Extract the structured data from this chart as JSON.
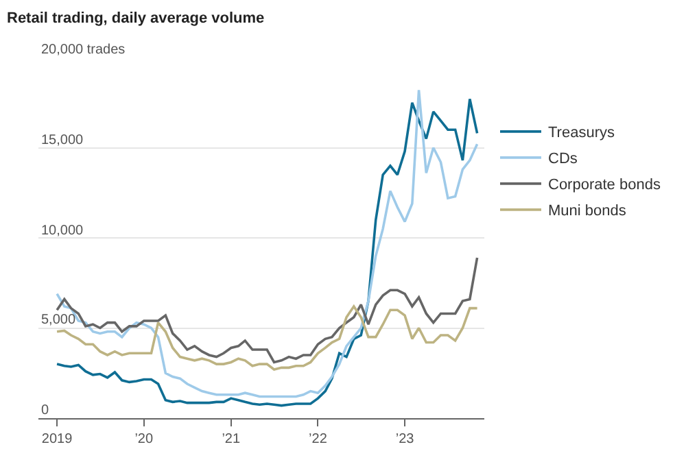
{
  "chart_data": {
    "type": "line",
    "title": "Retail trading, daily average volume",
    "x": [
      "2019-01",
      "2019-02",
      "2019-03",
      "2019-04",
      "2019-05",
      "2019-06",
      "2019-07",
      "2019-08",
      "2019-09",
      "2019-10",
      "2019-11",
      "2019-12",
      "2020-01",
      "2020-02",
      "2020-03",
      "2020-04",
      "2020-05",
      "2020-06",
      "2020-07",
      "2020-08",
      "2020-09",
      "2020-10",
      "2020-11",
      "2020-12",
      "2021-01",
      "2021-02",
      "2021-03",
      "2021-04",
      "2021-05",
      "2021-06",
      "2021-07",
      "2021-08",
      "2021-09",
      "2021-10",
      "2021-11",
      "2021-12",
      "2022-01",
      "2022-02",
      "2022-03",
      "2022-04",
      "2022-05",
      "2022-06",
      "2022-07",
      "2022-08",
      "2022-09",
      "2022-10",
      "2022-11",
      "2022-12",
      "2023-01",
      "2023-02",
      "2023-03",
      "2023-04",
      "2023-05",
      "2023-06",
      "2023-07",
      "2023-08",
      "2023-09",
      "2023-10",
      "2023-11"
    ],
    "series": [
      {
        "name": "Treasurys",
        "color": "#0f6e94",
        "values": [
          3000,
          2900,
          2850,
          2950,
          2600,
          2400,
          2450,
          2250,
          2550,
          2100,
          2000,
          2050,
          2150,
          2150,
          1900,
          1000,
          900,
          950,
          850,
          850,
          850,
          850,
          900,
          900,
          1100,
          1000,
          900,
          800,
          750,
          800,
          750,
          700,
          750,
          800,
          800,
          800,
          1100,
          1500,
          2200,
          3600,
          3400,
          4400,
          4600,
          6500,
          11000,
          13500,
          14000,
          13500,
          14800,
          17500,
          16500,
          15500,
          17000,
          16500,
          16000,
          16000,
          14300,
          17700,
          15800
        ]
      },
      {
        "name": "CDs",
        "color": "#9ecae9",
        "values": [
          6900,
          6200,
          6100,
          5400,
          5300,
          4800,
          4700,
          4800,
          4800,
          4500,
          5000,
          5300,
          5200,
          5000,
          4500,
          2500,
          2300,
          2200,
          1900,
          1700,
          1500,
          1400,
          1300,
          1300,
          1300,
          1300,
          1400,
          1300,
          1200,
          1200,
          1200,
          1200,
          1200,
          1200,
          1300,
          1500,
          1400,
          1800,
          2300,
          3000,
          4000,
          4500,
          5000,
          6500,
          9000,
          10500,
          12600,
          11700,
          10900,
          11900,
          18200,
          13600,
          15000,
          14200,
          12200,
          12300,
          13800,
          14300,
          15200
        ]
      },
      {
        "name": "Corporate bonds",
        "color": "#666666",
        "values": [
          6000,
          6600,
          6100,
          5800,
          5100,
          5200,
          5000,
          5300,
          5300,
          4800,
          5100,
          5100,
          5400,
          5400,
          5400,
          5700,
          4700,
          4300,
          3800,
          4000,
          3700,
          3500,
          3400,
          3600,
          3900,
          4000,
          4300,
          3800,
          3800,
          3800,
          3100,
          3200,
          3400,
          3300,
          3500,
          3500,
          4100,
          4400,
          4500,
          5000,
          5300,
          5600,
          6300,
          5200,
          6300,
          6800,
          7100,
          7100,
          6900,
          6200,
          6700,
          5800,
          5300,
          5800,
          5800,
          5800,
          6500,
          6600,
          8900
        ]
      },
      {
        "name": "Muni bonds",
        "color": "#bdb382",
        "values": [
          4800,
          4850,
          4600,
          4400,
          4100,
          4100,
          3700,
          3500,
          3700,
          3500,
          3600,
          3600,
          3600,
          3600,
          5300,
          4800,
          3900,
          3400,
          3300,
          3200,
          3300,
          3200,
          3000,
          3000,
          3100,
          3300,
          3200,
          2900,
          3000,
          3000,
          2700,
          2800,
          2800,
          2900,
          2900,
          3100,
          3600,
          3900,
          4200,
          4400,
          5600,
          6200,
          5600,
          4500,
          4500,
          5200,
          6000,
          6000,
          5700,
          4400,
          5000,
          4200,
          4200,
          4600,
          4600,
          4300,
          5000,
          6100,
          6100
        ]
      }
    ],
    "xlim": [
      "2018-10-15",
      "2023-12-01"
    ],
    "xticks": [
      {
        "value": "2019-01",
        "label": "2019"
      },
      {
        "value": "2020-01",
        "label": "’20"
      },
      {
        "value": "2021-01",
        "label": "’21"
      },
      {
        "value": "2022-01",
        "label": "’22"
      },
      {
        "value": "2023-01",
        "label": "’23"
      }
    ],
    "ylim": [
      0,
      20000
    ],
    "yticks": [
      0,
      {
        "value": 5000,
        "label": "5,000"
      },
      {
        "value": 10000,
        "label": "10,000"
      },
      {
        "value": 15000,
        "label": "15,000"
      },
      {
        "value": 20000,
        "label": "20,000 trades"
      }
    ],
    "grid": "y",
    "legend": "right",
    "marker": "none",
    "line_style": "solid"
  }
}
